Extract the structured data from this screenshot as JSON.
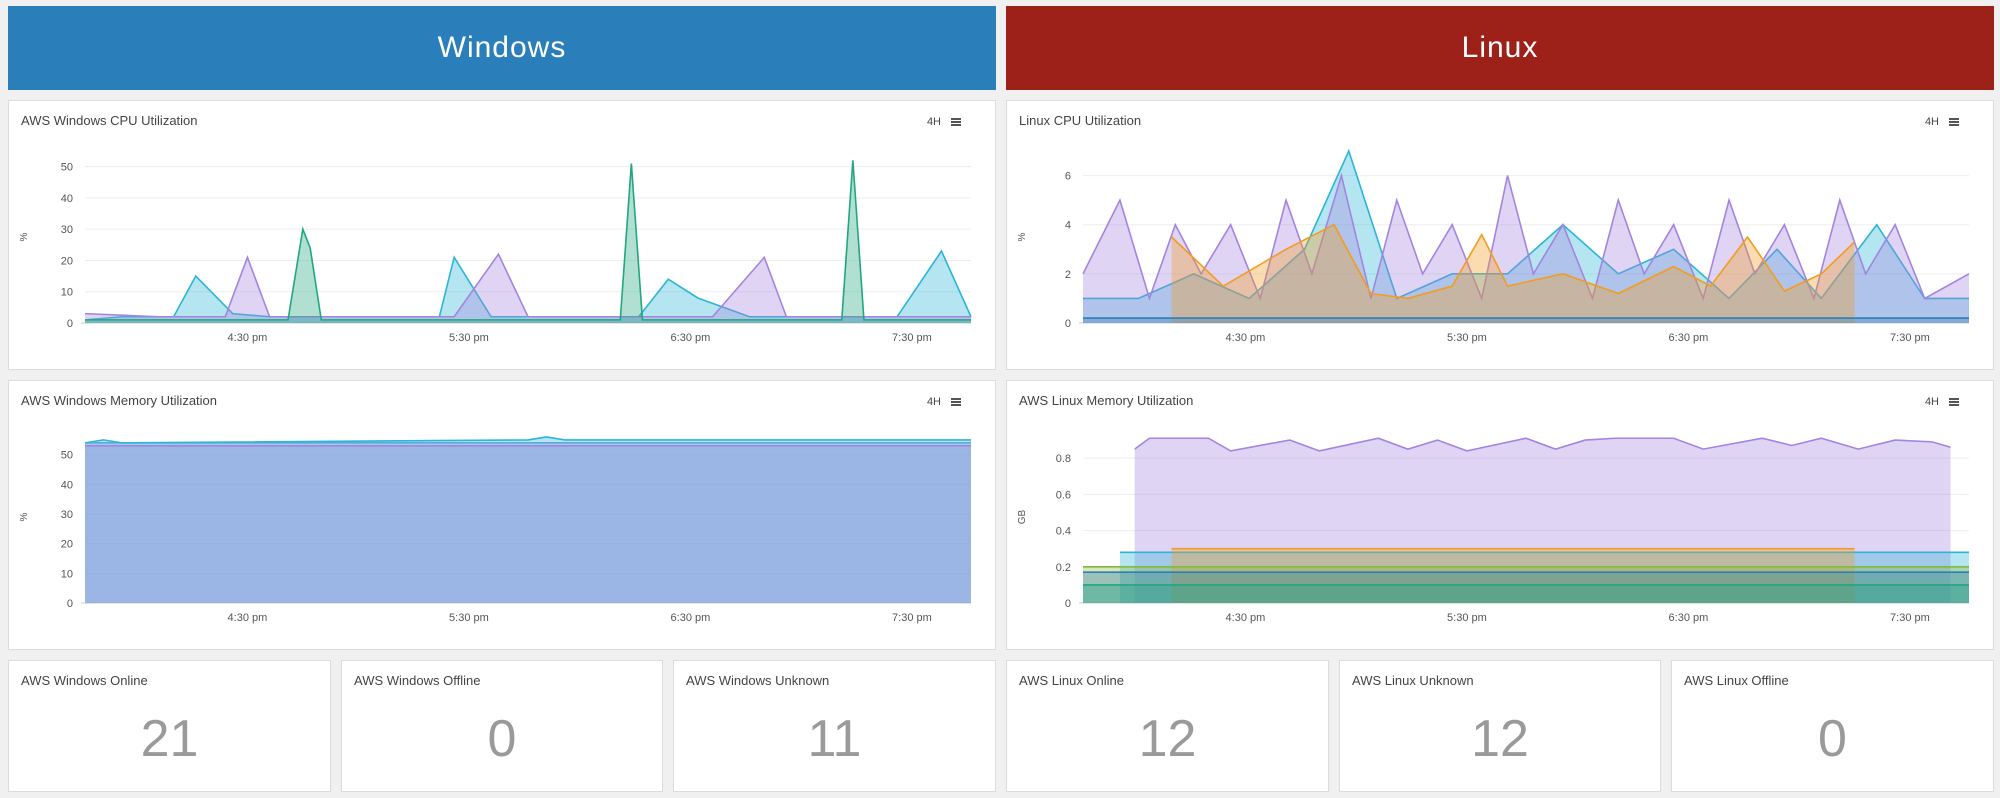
{
  "colors": {
    "windows_banner": "#2a7fbb",
    "linux_banner": "#9e2119"
  },
  "banners": {
    "windows": "Windows",
    "linux": "Linux"
  },
  "panels": {
    "win_cpu": {
      "title": "AWS Windows CPU Utilization",
      "range": "4H"
    },
    "lin_cpu": {
      "title": "Linux CPU Utilization",
      "range": "4H"
    },
    "win_mem": {
      "title": "AWS Windows Memory Utilization",
      "range": "4H"
    },
    "lin_mem": {
      "title": "AWS Linux Memory Utilization",
      "range": "4H"
    }
  },
  "stats": {
    "win_online": {
      "label": "AWS Windows Online",
      "value": "21"
    },
    "win_offline": {
      "label": "AWS Windows Offline",
      "value": "0"
    },
    "win_unknown": {
      "label": "AWS Windows Unknown",
      "value": "11"
    },
    "lin_online": {
      "label": "AWS Linux Online",
      "value": "12"
    },
    "lin_unknown": {
      "label": "AWS Linux Unknown",
      "value": "12"
    },
    "lin_offline": {
      "label": "AWS Linux Offline",
      "value": "0"
    }
  },
  "chart_data": [
    {
      "id": "win_cpu",
      "type": "area",
      "ylabel": "%",
      "ylim": [
        0,
        55
      ],
      "yticks": [
        0,
        10,
        20,
        30,
        40,
        50
      ],
      "xlim": [
        0,
        240
      ],
      "xticks": [
        {
          "x": 44,
          "label": "4:30 pm"
        },
        {
          "x": 104,
          "label": "5:30 pm"
        },
        {
          "x": 164,
          "label": "6:30 pm"
        },
        {
          "x": 224,
          "label": "7:30 pm"
        }
      ],
      "grid": true,
      "series": [
        {
          "color": "#2bb5d6",
          "x": [
            0,
            10,
            20,
            24,
            30,
            40,
            50,
            60,
            90,
            96,
            100,
            110,
            140,
            150,
            158,
            166,
            180,
            200,
            220,
            232,
            240
          ],
          "y": [
            1,
            2,
            2,
            2,
            15,
            3,
            2,
            2,
            2,
            2,
            21,
            2,
            2,
            2,
            14,
            8,
            2,
            2,
            2,
            23,
            2
          ]
        },
        {
          "color": "#a384e0",
          "x": [
            0,
            20,
            38,
            44,
            50,
            80,
            100,
            112,
            120,
            150,
            170,
            184,
            190,
            220,
            240
          ],
          "y": [
            3,
            2,
            2,
            21,
            2,
            2,
            2,
            22,
            2,
            2,
            2,
            21,
            2,
            2,
            2
          ]
        },
        {
          "color": "#20a77f",
          "x": [
            0,
            20,
            55,
            59,
            61,
            64,
            100,
            145,
            148,
            151,
            200,
            205,
            208,
            211,
            240
          ],
          "y": [
            1,
            1,
            1,
            30,
            24,
            1,
            1,
            1,
            51,
            1,
            1,
            1,
            52,
            1,
            1
          ]
        }
      ]
    },
    {
      "id": "lin_cpu",
      "type": "area",
      "ylabel": "%",
      "ylim": [
        0,
        7
      ],
      "yticks": [
        0,
        2,
        4,
        6
      ],
      "xlim": [
        0,
        240
      ],
      "xticks": [
        {
          "x": 44,
          "label": "4:30 pm"
        },
        {
          "x": 104,
          "label": "5:30 pm"
        },
        {
          "x": 164,
          "label": "6:30 pm"
        },
        {
          "x": 224,
          "label": "7:30 pm"
        }
      ],
      "grid": true,
      "series": [
        {
          "color": "#2bb5d6",
          "x": [
            0,
            15,
            30,
            45,
            60,
            72,
            85,
            100,
            115,
            130,
            145,
            160,
            175,
            188,
            200,
            215,
            228,
            240
          ],
          "y": [
            1,
            1,
            2,
            1,
            3,
            7,
            1,
            2,
            2,
            4,
            2,
            3,
            1,
            3,
            1,
            4,
            1,
            1
          ]
        },
        {
          "color": "#a384e0",
          "x": [
            0,
            10,
            18,
            25,
            32,
            40,
            48,
            55,
            62,
            70,
            78,
            85,
            92,
            100,
            108,
            115,
            122,
            130,
            138,
            145,
            152,
            160,
            168,
            175,
            182,
            190,
            198,
            205,
            212,
            220,
            228,
            240
          ],
          "y": [
            2,
            5,
            1,
            4,
            2,
            4,
            1,
            5,
            2,
            6,
            1,
            5,
            2,
            4,
            1,
            6,
            2,
            4,
            1,
            5,
            2,
            4,
            1,
            5,
            2,
            4,
            1,
            5,
            2,
            4,
            1,
            2
          ]
        },
        {
          "color": "#f39c1e",
          "x": [
            24,
            38,
            55,
            68,
            78,
            88,
            100,
            108,
            115,
            130,
            145,
            160,
            170,
            180,
            190,
            200,
            209
          ],
          "y": [
            3.5,
            1.5,
            3,
            4,
            1.2,
            1,
            1.5,
            3.6,
            1.5,
            2,
            1.2,
            2.3,
            1.5,
            3.5,
            1.3,
            2,
            3.3
          ]
        },
        {
          "color": "#2d7fb8",
          "x": [
            0,
            240
          ],
          "y": [
            0.2,
            0.2
          ]
        }
      ]
    },
    {
      "id": "win_mem",
      "type": "area",
      "ylabel": "%",
      "ylim": [
        0,
        58
      ],
      "yticks": [
        0,
        10,
        20,
        30,
        40,
        50
      ],
      "xlim": [
        0,
        240
      ],
      "xticks": [
        {
          "x": 44,
          "label": "4:30 pm"
        },
        {
          "x": 104,
          "label": "5:30 pm"
        },
        {
          "x": 164,
          "label": "6:30 pm"
        },
        {
          "x": 224,
          "label": "7:30 pm"
        }
      ],
      "grid": true,
      "series": [
        {
          "color": "#7aa6d9",
          "x": [
            0,
            240
          ],
          "y": [
            54,
            54
          ]
        },
        {
          "color": "#2bb5d6",
          "x": [
            0,
            5,
            10,
            120,
            125,
            130,
            240
          ],
          "y": [
            54,
            55,
            54,
            55,
            56,
            55,
            55
          ]
        },
        {
          "color": "#a384e0",
          "x": [
            0,
            240
          ],
          "y": [
            53,
            53
          ]
        }
      ]
    },
    {
      "id": "lin_mem",
      "type": "area",
      "ylabel": "GB",
      "ylim": [
        0,
        0.95
      ],
      "yticks": [
        0,
        0.2,
        0.4,
        0.6,
        0.8
      ],
      "xlim": [
        0,
        240
      ],
      "xticks": [
        {
          "x": 44,
          "label": "4:30 pm"
        },
        {
          "x": 104,
          "label": "5:30 pm"
        },
        {
          "x": 164,
          "label": "6:30 pm"
        },
        {
          "x": 224,
          "label": "7:30 pm"
        }
      ],
      "grid": true,
      "series": [
        {
          "color": "#a384e0",
          "x": [
            14,
            18,
            34,
            40,
            56,
            64,
            80,
            88,
            96,
            104,
            120,
            128,
            136,
            144,
            160,
            168,
            184,
            192,
            200,
            210,
            220,
            230,
            235
          ],
          "y": [
            0.85,
            0.91,
            0.91,
            0.84,
            0.9,
            0.84,
            0.91,
            0.85,
            0.9,
            0.84,
            0.91,
            0.85,
            0.9,
            0.91,
            0.91,
            0.85,
            0.91,
            0.87,
            0.91,
            0.85,
            0.9,
            0.89,
            0.86
          ]
        },
        {
          "color": "#2bb5d6",
          "x": [
            10,
            240
          ],
          "y": [
            0.28,
            0.28
          ]
        },
        {
          "color": "#f39c1e",
          "x": [
            24,
            209
          ],
          "y": [
            0.3,
            0.3
          ]
        },
        {
          "color": "#86b83a",
          "x": [
            0,
            240
          ],
          "y": [
            0.2,
            0.2
          ]
        },
        {
          "color": "#2d7fb8",
          "x": [
            0,
            240
          ],
          "y": [
            0.17,
            0.17
          ]
        },
        {
          "color": "#20a77f",
          "x": [
            0,
            240
          ],
          "y": [
            0.1,
            0.1
          ]
        }
      ]
    }
  ]
}
